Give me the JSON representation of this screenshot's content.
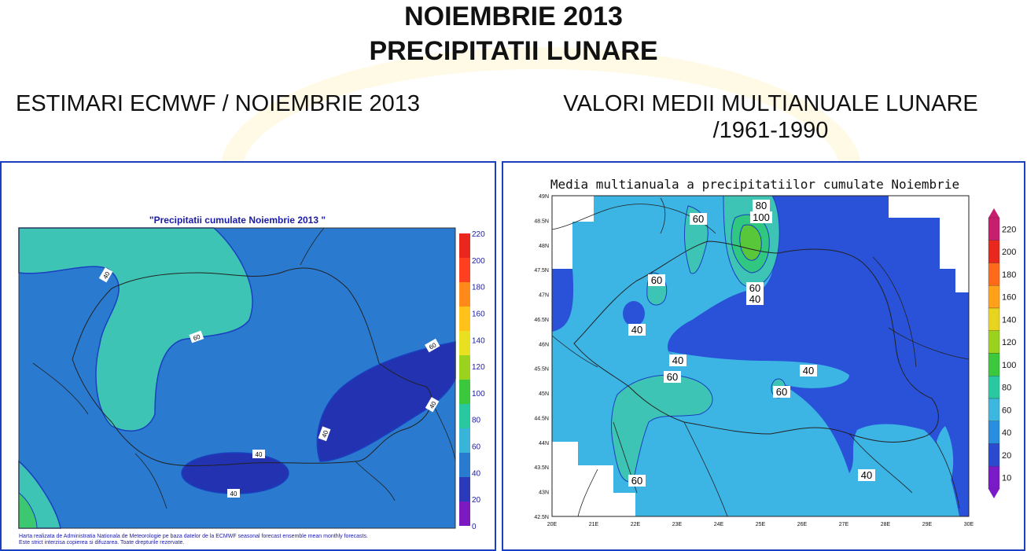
{
  "header": {
    "title_line1": "NOIEMBRIE 2013",
    "title_line2": "PRECIPITATII LUNARE"
  },
  "subtitles": {
    "left": "ESTIMARI ECMWF / NOIEMBRIE 2013",
    "right_line1": "VALORI MEDII MULTIANUALE LUNARE",
    "right_line2": "/1961-1990"
  },
  "left_map": {
    "title": "\"Precipitatii cumulate Noiembrie 2013 \"",
    "footnote_line1": "Harta realizata de Administratia Nationala de Meteorologie pe baza datelor de la ECMWF seasonal forecast ensemble mean monthly forecasts.",
    "footnote_line2": "Este strict interzisa copierea si difuzarea. Toate drepturile rezervate.",
    "contour_labels": [
      "40",
      "60",
      "60",
      "40",
      "40",
      "40",
      "40",
      "40"
    ],
    "colorbar": {
      "ticks": [
        "220",
        "200",
        "180",
        "160",
        "140",
        "120",
        "100",
        "80",
        "60",
        "40",
        "20",
        "0"
      ],
      "colors": [
        "#e8281e",
        "#ff4020",
        "#ff8a1a",
        "#ffc21a",
        "#e8e020",
        "#9ad21e",
        "#3cc83c",
        "#2ac8a0",
        "#38b4d8",
        "#2a7ad0",
        "#2a3ab8",
        "#7a1ac0"
      ]
    }
  },
  "right_map": {
    "title": "Media multianuala a precipitatiilor cumulate Noiembrie",
    "lat_ticks": [
      "49N",
      "48.5N",
      "48N",
      "47.5N",
      "47N",
      "46.5N",
      "46N",
      "45.5N",
      "45N",
      "44.5N",
      "44N",
      "43.5N",
      "43N",
      "42.5N"
    ],
    "lon_ticks": [
      "20E",
      "21E",
      "22E",
      "23E",
      "24E",
      "25E",
      "26E",
      "27E",
      "28E",
      "29E",
      "30E"
    ],
    "contour_labels": [
      "80",
      "100",
      "60",
      "60",
      "60",
      "40",
      "40",
      "40",
      "40",
      "60",
      "60",
      "60",
      "40"
    ],
    "colorbar": {
      "ticks": [
        "220",
        "200",
        "180",
        "160",
        "140",
        "120",
        "100",
        "80",
        "60",
        "40",
        "20",
        "10"
      ],
      "colors": [
        "#c81e6e",
        "#e8281e",
        "#ff6a1a",
        "#ffa21a",
        "#e8d41e",
        "#9ad21e",
        "#3cc83c",
        "#2ac8a0",
        "#3cb8e0",
        "#2a8ee0",
        "#2a4ad0",
        "#7a1ac8"
      ]
    }
  }
}
